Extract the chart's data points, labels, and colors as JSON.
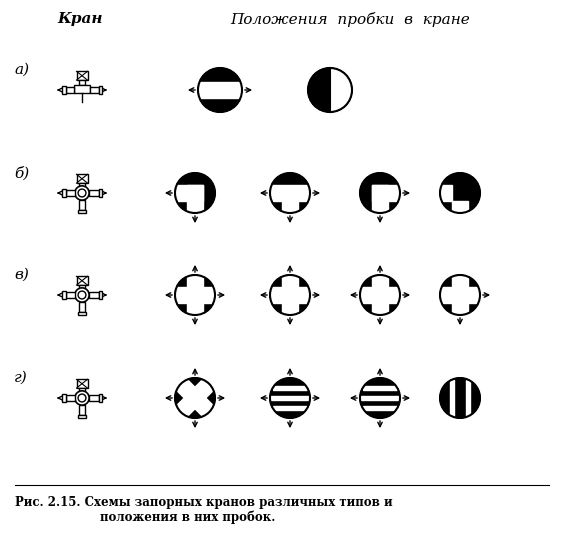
{
  "title": "Кран",
  "title2": "Положения  пробки  в  кране",
  "caption": "Рис. 2.15. Схемы запорных кранов различных типов и",
  "caption2": "положения в них пробок.",
  "rows": [
    "а)",
    "б)",
    "в)",
    "г)"
  ],
  "bg_color": "#ffffff",
  "fg_color": "#000000"
}
